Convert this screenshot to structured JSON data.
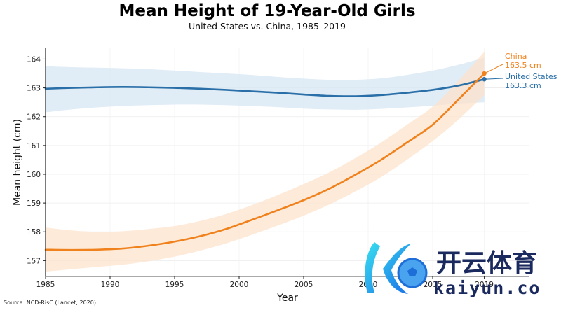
{
  "chart_data": {
    "type": "line",
    "title": "Mean Height of 19-Year-Old Girls",
    "subtitle": "United States vs. China, 1985–2019",
    "xlabel": "Year",
    "ylabel": "Mean height (cm)",
    "xlim": [
      1985,
      2022.5
    ],
    "ylim": [
      156.45,
      164.4
    ],
    "x_ticks": [
      1985,
      1990,
      1995,
      2000,
      2005,
      2010,
      2015,
      2019
    ],
    "y_ticks": [
      157,
      158,
      159,
      160,
      161,
      162,
      163,
      164
    ],
    "grid": true,
    "legend": "inline end-of-line labels (right)",
    "x": [
      1985,
      1987,
      1989,
      1991,
      1993,
      1995,
      1997,
      1999,
      2001,
      2003,
      2005,
      2007,
      2009,
      2011,
      2013,
      2015,
      2017,
      2019
    ],
    "series": [
      {
        "name": "United States",
        "color": "#2a6fa8",
        "band_color": "#d6e6f3",
        "values": [
          162.97,
          163.0,
          163.02,
          163.03,
          163.02,
          163.0,
          162.97,
          162.93,
          162.88,
          162.83,
          162.77,
          162.72,
          162.71,
          162.75,
          162.83,
          162.93,
          163.08,
          163.3
        ],
        "lower": [
          162.15,
          162.25,
          162.32,
          162.37,
          162.4,
          162.42,
          162.42,
          162.4,
          162.37,
          162.33,
          162.28,
          162.25,
          162.24,
          162.27,
          162.32,
          162.38,
          162.45,
          162.5
        ],
        "upper": [
          163.75,
          163.72,
          163.7,
          163.68,
          163.65,
          163.6,
          163.55,
          163.5,
          163.45,
          163.38,
          163.32,
          163.28,
          163.28,
          163.33,
          163.45,
          163.6,
          163.8,
          164.05
        ],
        "end_label": "United States",
        "end_value_label": "163.3 cm"
      },
      {
        "name": "China",
        "color": "#f0821e",
        "band_color": "#fde3cc",
        "values": [
          157.38,
          157.37,
          157.38,
          157.42,
          157.52,
          157.66,
          157.85,
          158.1,
          158.42,
          158.75,
          159.1,
          159.5,
          159.98,
          160.5,
          161.1,
          161.72,
          162.6,
          163.5
        ],
        "lower": [
          156.62,
          156.7,
          156.78,
          156.86,
          156.98,
          157.14,
          157.35,
          157.6,
          157.9,
          158.22,
          158.56,
          158.95,
          159.4,
          159.9,
          160.5,
          161.15,
          161.9,
          162.75
        ],
        "upper": [
          158.15,
          158.05,
          158.0,
          158.02,
          158.1,
          158.2,
          158.38,
          158.62,
          158.93,
          159.28,
          159.66,
          160.07,
          160.56,
          161.1,
          161.72,
          162.35,
          163.25,
          164.25
        ],
        "end_label": "China",
        "end_value_label": "163.5 cm"
      }
    ]
  },
  "source": "Source: NCD-RisC (Lancet, 2020).",
  "watermark": {
    "text_cn": "开云体育",
    "text_en": "kaiyun.com"
  }
}
